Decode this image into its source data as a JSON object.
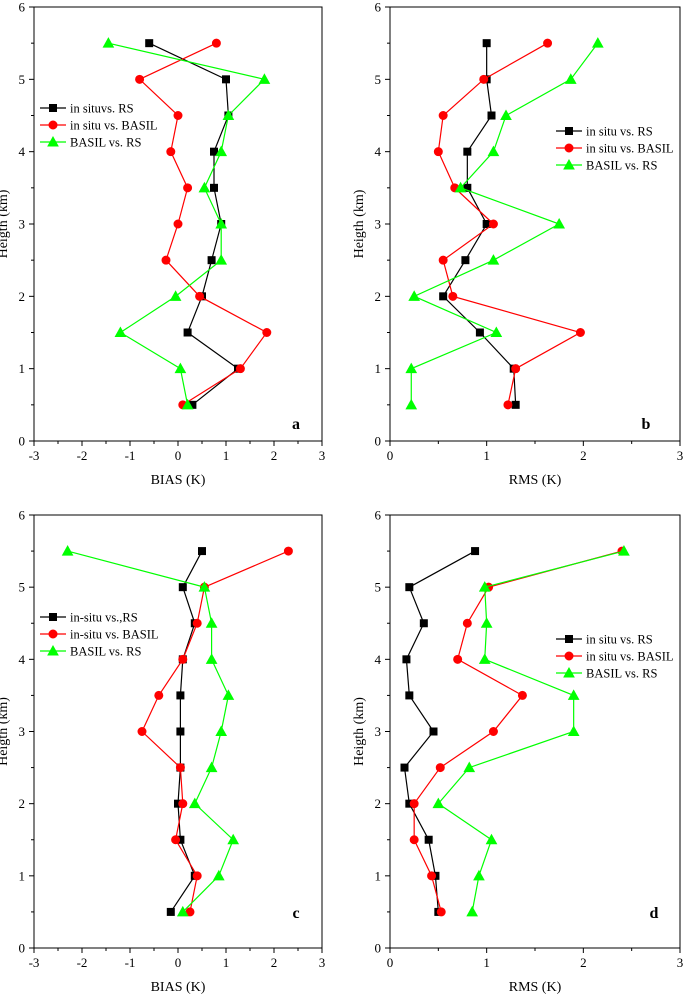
{
  "colors": {
    "insitu_rs": "#000000",
    "insitu_basil": "#ff0000",
    "basil_rs": "#00ff00"
  },
  "chart_data": [
    {
      "type": "line",
      "panel": "a",
      "xlabel": "BIAS (K)",
      "ylabel": "Heigth (km)",
      "xlim": [
        -3,
        3
      ],
      "ylim": [
        0,
        6
      ],
      "xticks": [
        "-3",
        "-2",
        "-1",
        "0",
        "1",
        "2",
        "3"
      ],
      "yticks": [
        "0",
        "1",
        "2",
        "3",
        "4",
        "5",
        "6"
      ],
      "legend_position": "upper-left",
      "series": [
        {
          "name": "in situvs. RS",
          "marker": "square",
          "color": "#000000",
          "x": [
            0.3,
            1.25,
            0.2,
            0.5,
            0.7,
            0.9,
            0.75,
            0.75,
            1.05,
            1.0,
            -0.6
          ],
          "y": [
            0.5,
            1.0,
            1.5,
            2.0,
            2.5,
            3.0,
            3.5,
            4.0,
            4.5,
            5.0,
            5.5
          ]
        },
        {
          "name": "in situ vs. BASIL",
          "marker": "circle",
          "color": "#ff0000",
          "x": [
            0.1,
            1.3,
            1.85,
            0.45,
            -0.25,
            0.0,
            0.2,
            -0.15,
            0.0,
            -0.8,
            0.8
          ],
          "y": [
            0.5,
            1.0,
            1.5,
            2.0,
            2.5,
            3.0,
            3.5,
            4.0,
            4.5,
            5.0,
            5.5
          ]
        },
        {
          "name": "BASIL vs. RS",
          "marker": "triangle",
          "color": "#00ff00",
          "x": [
            0.2,
            0.05,
            -1.2,
            -0.05,
            0.9,
            0.9,
            0.55,
            0.9,
            1.05,
            1.8,
            -1.45
          ],
          "y": [
            0.5,
            1.0,
            1.5,
            2.0,
            2.5,
            3.0,
            3.5,
            4.0,
            4.5,
            5.0,
            5.5
          ]
        }
      ]
    },
    {
      "type": "line",
      "panel": "b",
      "xlabel": "RMS (K)",
      "ylabel": "Heigth (km)",
      "xlim": [
        0,
        3
      ],
      "ylim": [
        0,
        6
      ],
      "xticks": [
        "0",
        "1",
        "2",
        "3"
      ],
      "yticks": [
        "0",
        "1",
        "2",
        "3",
        "4",
        "5",
        "6"
      ],
      "legend_position": "right",
      "series": [
        {
          "name": "in situ vs. RS",
          "marker": "square",
          "color": "#000000",
          "x": [
            1.3,
            1.28,
            0.93,
            0.55,
            0.78,
            1.0,
            0.8,
            0.8,
            1.05,
            1.0,
            1.0
          ],
          "y": [
            0.5,
            1.0,
            1.5,
            2.0,
            2.5,
            3.0,
            3.5,
            4.0,
            4.5,
            5.0,
            5.5
          ]
        },
        {
          "name": "in situ vs. BASIL",
          "marker": "circle",
          "color": "#ff0000",
          "x": [
            1.22,
            1.3,
            1.97,
            0.65,
            0.55,
            1.07,
            0.67,
            0.5,
            0.55,
            0.97,
            1.63
          ],
          "y": [
            0.5,
            1.0,
            1.5,
            2.0,
            2.5,
            3.0,
            3.5,
            4.0,
            4.5,
            5.0,
            5.5
          ]
        },
        {
          "name": "BASIL vs. RS",
          "marker": "triangle",
          "color": "#00ff00",
          "x": [
            0.22,
            0.22,
            1.1,
            0.25,
            1.07,
            1.75,
            0.73,
            1.07,
            1.2,
            1.87,
            2.15
          ],
          "y": [
            0.5,
            1.0,
            1.5,
            2.0,
            2.5,
            3.0,
            3.5,
            4.0,
            4.5,
            5.0,
            5.5
          ]
        }
      ]
    },
    {
      "type": "line",
      "panel": "c",
      "xlabel": "BIAS (K)",
      "ylabel": "Heigth (km)",
      "xlim": [
        -3,
        3
      ],
      "ylim": [
        0,
        6
      ],
      "xticks": [
        "-3",
        "-2",
        "-1",
        "0",
        "1",
        "2",
        "3"
      ],
      "yticks": [
        "0",
        "1",
        "2",
        "3",
        "4",
        "5",
        "6"
      ],
      "legend_position": "upper-left",
      "series": [
        {
          "name": "in-situ vs.,RS",
          "marker": "square",
          "color": "#000000",
          "x": [
            -0.15,
            0.35,
            0.05,
            0.0,
            0.05,
            0.05,
            0.05,
            0.1,
            0.35,
            0.1,
            0.5
          ],
          "y": [
            0.5,
            1.0,
            1.5,
            2.0,
            2.5,
            3.0,
            3.5,
            4.0,
            4.5,
            5.0,
            5.5
          ]
        },
        {
          "name": "in-situ vs. BASIL",
          "marker": "circle",
          "color": "#ff0000",
          "x": [
            0.25,
            0.4,
            -0.05,
            0.1,
            0.05,
            -0.75,
            -0.4,
            0.1,
            0.4,
            0.55,
            2.3
          ],
          "y": [
            0.5,
            1.0,
            1.5,
            2.0,
            2.5,
            3.0,
            3.5,
            4.0,
            4.5,
            5.0,
            5.5
          ]
        },
        {
          "name": "BASIL vs. RS",
          "marker": "triangle",
          "color": "#00ff00",
          "x": [
            0.1,
            0.85,
            1.15,
            0.35,
            0.7,
            0.9,
            1.05,
            0.7,
            0.7,
            0.55,
            -2.3
          ],
          "y": [
            0.5,
            1.0,
            1.5,
            2.0,
            2.5,
            3.0,
            3.5,
            4.0,
            4.5,
            5.0,
            5.5
          ]
        }
      ]
    },
    {
      "type": "line",
      "panel": "d",
      "xlabel": "RMS (K)",
      "ylabel": "Heigth (km)",
      "xlim": [
        0,
        3
      ],
      "ylim": [
        0,
        6
      ],
      "xticks": [
        "0",
        "1",
        "2",
        "3"
      ],
      "yticks": [
        "0",
        "1",
        "2",
        "3",
        "4",
        "5",
        "6"
      ],
      "legend_position": "right",
      "series": [
        {
          "name": "in situ vs. RS",
          "marker": "square",
          "color": "#000000",
          "x": [
            0.5,
            0.47,
            0.4,
            0.2,
            0.15,
            0.45,
            0.2,
            0.17,
            0.35,
            0.2,
            0.88
          ],
          "y": [
            0.5,
            1.0,
            1.5,
            2.0,
            2.5,
            3.0,
            3.5,
            4.0,
            4.5,
            5.0,
            5.5
          ]
        },
        {
          "name": "in situ vs. BASIL",
          "marker": "circle",
          "color": "#ff0000",
          "x": [
            0.53,
            0.43,
            0.25,
            0.25,
            0.52,
            1.07,
            1.37,
            0.7,
            0.8,
            1.02,
            2.4
          ],
          "y": [
            0.5,
            1.0,
            1.5,
            2.0,
            2.5,
            3.0,
            3.5,
            4.0,
            4.5,
            5.0,
            5.5
          ]
        },
        {
          "name": "BASIL vs. RS",
          "marker": "triangle",
          "color": "#00ff00",
          "x": [
            0.85,
            0.92,
            1.05,
            0.5,
            0.82,
            1.9,
            1.9,
            0.98,
            1.0,
            0.98,
            2.42
          ],
          "y": [
            0.5,
            1.0,
            1.5,
            2.0,
            2.5,
            3.0,
            3.5,
            4.0,
            4.5,
            5.0,
            5.5
          ]
        }
      ]
    }
  ]
}
